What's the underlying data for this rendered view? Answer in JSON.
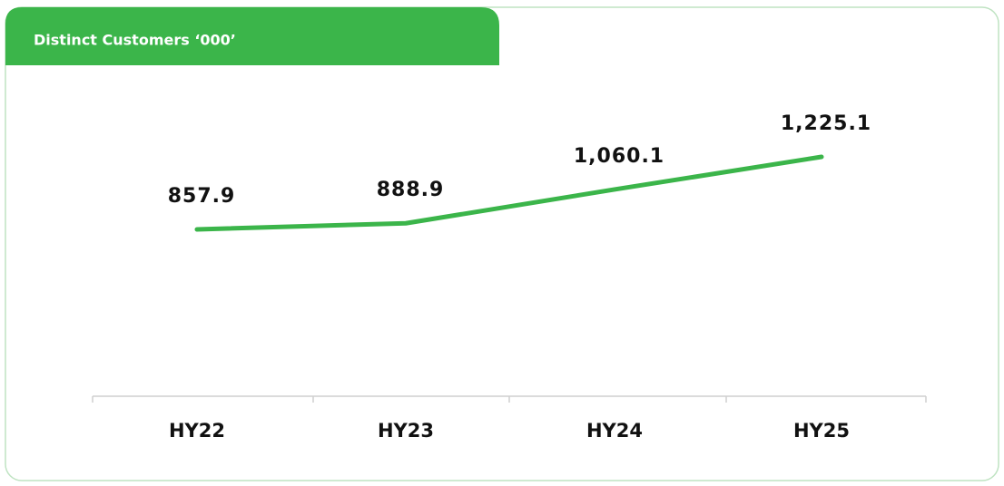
{
  "chart_data": {
    "type": "line",
    "title": "Distinct Customers ‘000’",
    "categories": [
      "HY22",
      "HY23",
      "HY24",
      "HY25"
    ],
    "values": [
      857.9,
      888.9,
      1060.1,
      1225.1
    ],
    "value_labels": [
      "857.9",
      "888.9",
      "1,060.1",
      "1,225.1"
    ],
    "color": "#3bb54a"
  }
}
